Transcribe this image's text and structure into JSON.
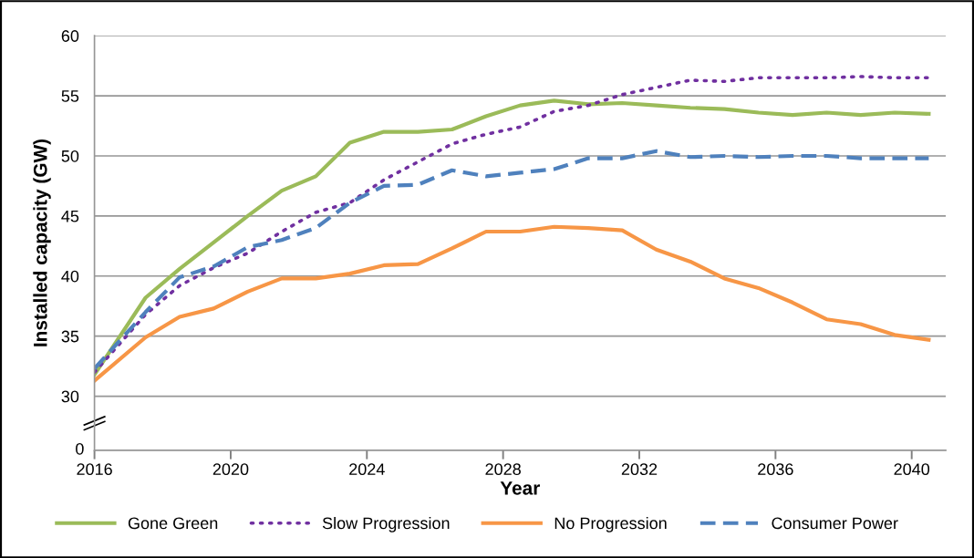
{
  "chart_data": {
    "type": "line",
    "xlabel": "Year",
    "ylabel": "Installed capacity (GW)",
    "x": [
      2016,
      2017.5,
      2018.5,
      2019.5,
      2020.5,
      2021.5,
      2022.5,
      2023.5,
      2024.5,
      2025.5,
      2026.5,
      2027.5,
      2028.5,
      2029.5,
      2030.5,
      2031.5,
      2032.5,
      2033.5,
      2034.5,
      2035.5,
      2036.5,
      2037.5,
      2038.5,
      2039.5,
      2040.5
    ],
    "series": [
      {
        "name": "Gone Green",
        "color": "#9bbb59",
        "line_style": "solid",
        "values": [
          31.8,
          38.2,
          40.6,
          42.8,
          45.0,
          47.1,
          48.3,
          51.1,
          52.0,
          52.0,
          52.2,
          53.3,
          54.2,
          54.6,
          54.3,
          54.4,
          54.2,
          54.0,
          53.9,
          53.6,
          53.4,
          53.6,
          53.4,
          53.6,
          53.5
        ]
      },
      {
        "name": "Slow Progression",
        "color": "#7030a0",
        "line_style": "dotted",
        "values": [
          32.0,
          36.8,
          39.2,
          40.7,
          41.9,
          43.7,
          45.3,
          46.1,
          48.0,
          49.5,
          51.0,
          51.8,
          52.4,
          53.7,
          54.2,
          55.1,
          55.7,
          56.3,
          56.2,
          56.5,
          56.5,
          56.5,
          56.6,
          56.5,
          56.5
        ]
      },
      {
        "name": "No Progression",
        "color": "#f79646",
        "line_style": "solid",
        "values": [
          31.3,
          34.9,
          36.6,
          37.3,
          38.7,
          39.8,
          39.8,
          40.2,
          40.9,
          41.0,
          42.3,
          43.7,
          43.7,
          44.1,
          44.0,
          43.8,
          42.2,
          41.2,
          39.8,
          39.0,
          37.8,
          36.4,
          36.0,
          35.1,
          34.7
        ]
      },
      {
        "name": "Consumer Power",
        "color": "#4f81bd",
        "line_style": "dashed",
        "values": [
          32.3,
          37.0,
          39.9,
          40.8,
          42.4,
          43.0,
          44.0,
          46.1,
          47.5,
          47.6,
          48.8,
          48.3,
          48.6,
          48.9,
          49.8,
          49.8,
          50.4,
          49.9,
          50.0,
          49.9,
          50.0,
          50.0,
          49.8,
          49.8,
          49.8
        ]
      }
    ],
    "xlim": [
      2016,
      2041
    ],
    "xticks": [
      2016,
      2020,
      2024,
      2028,
      2032,
      2036,
      2040
    ],
    "ylim": [
      25.5,
      60
    ],
    "yticks": [
      30,
      35,
      40,
      45,
      50,
      55,
      60
    ],
    "annotations": [
      "0"
    ],
    "grid": "y",
    "legend": "bottom",
    "marker": "none"
  }
}
